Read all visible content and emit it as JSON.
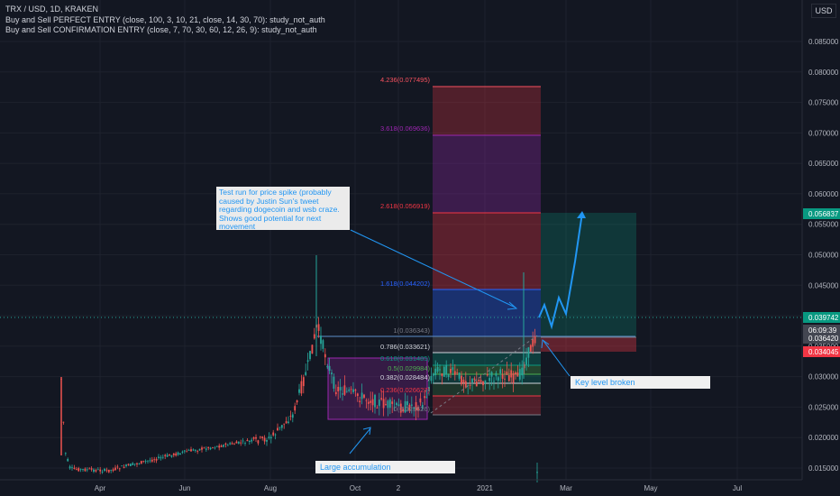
{
  "header": {
    "symbol_line": "TRX / USD, 1D, KRAKEN",
    "indicator_1": "Buy and Sell PERFECT ENTRY (close, 100, 3, 10, 21, close, 14, 30, 70): study_not_auth",
    "indicator_2": "Buy and Sell CONFIRMATION ENTRY (close, 7, 70, 30, 60, 12, 26, 9): study_not_auth",
    "currency_button": "USD"
  },
  "price_axis": {
    "ticks": [
      "0.085000",
      "0.080000",
      "0.075000",
      "0.070000",
      "0.065000",
      "0.060000",
      "0.055000",
      "0.050000",
      "0.045000",
      "0.040000",
      "0.035000",
      "0.030000",
      "0.025000",
      "0.020000",
      "0.015000"
    ],
    "labels": [
      {
        "text": "0.056837",
        "color": "#089981"
      },
      {
        "text": "0.039742",
        "color": "#089981"
      },
      {
        "text": "0.036420",
        "color": "#434651"
      },
      {
        "text": "06:09:39",
        "color": "#434651"
      },
      {
        "text": "0.034045",
        "color": "#f23645"
      }
    ]
  },
  "time_axis": {
    "labels": [
      "Apr",
      "Jun",
      "Aug",
      "Oct",
      "2",
      "2021",
      "Mar",
      "May",
      "Jul"
    ]
  },
  "fib": {
    "levels": [
      {
        "label": "4.236(0.077495)",
        "color": "#f7525f"
      },
      {
        "label": "3.618(0.069636)",
        "color": "#9c27b0"
      },
      {
        "label": "2.618(0.056919)",
        "color": "#f23645"
      },
      {
        "label": "1.618(0.044202)",
        "color": "#2962ff"
      },
      {
        "label": "1(0.036343)",
        "color": "#787b86"
      },
      {
        "label": "0.786(0.033621)",
        "color": "#d1d4dc"
      },
      {
        "label": "0.618(0.031485)",
        "color": "#089981"
      },
      {
        "label": "0.5(0.029984)",
        "color": "#4caf50"
      },
      {
        "label": "0.382(0.028484)",
        "color": "#d1d4dc"
      },
      {
        "label": "0.236(0.026627)",
        "color": "#f23645"
      },
      {
        "label": "0(0.023626)",
        "color": "#787b86"
      }
    ]
  },
  "annotations": {
    "test_run": "Test run for price spike (probably caused by Justin Sun's tweet regarding dogecoin and wsb craze. Shows good potential for next movement",
    "key_level": "Key level broken",
    "accumulation": "Large accumulation"
  },
  "colors": {
    "background": "#131722",
    "up": "#26a69a",
    "down": "#ef5350",
    "accent_blue": "#2196f3",
    "accumulation_box": "#9c27b0"
  }
}
